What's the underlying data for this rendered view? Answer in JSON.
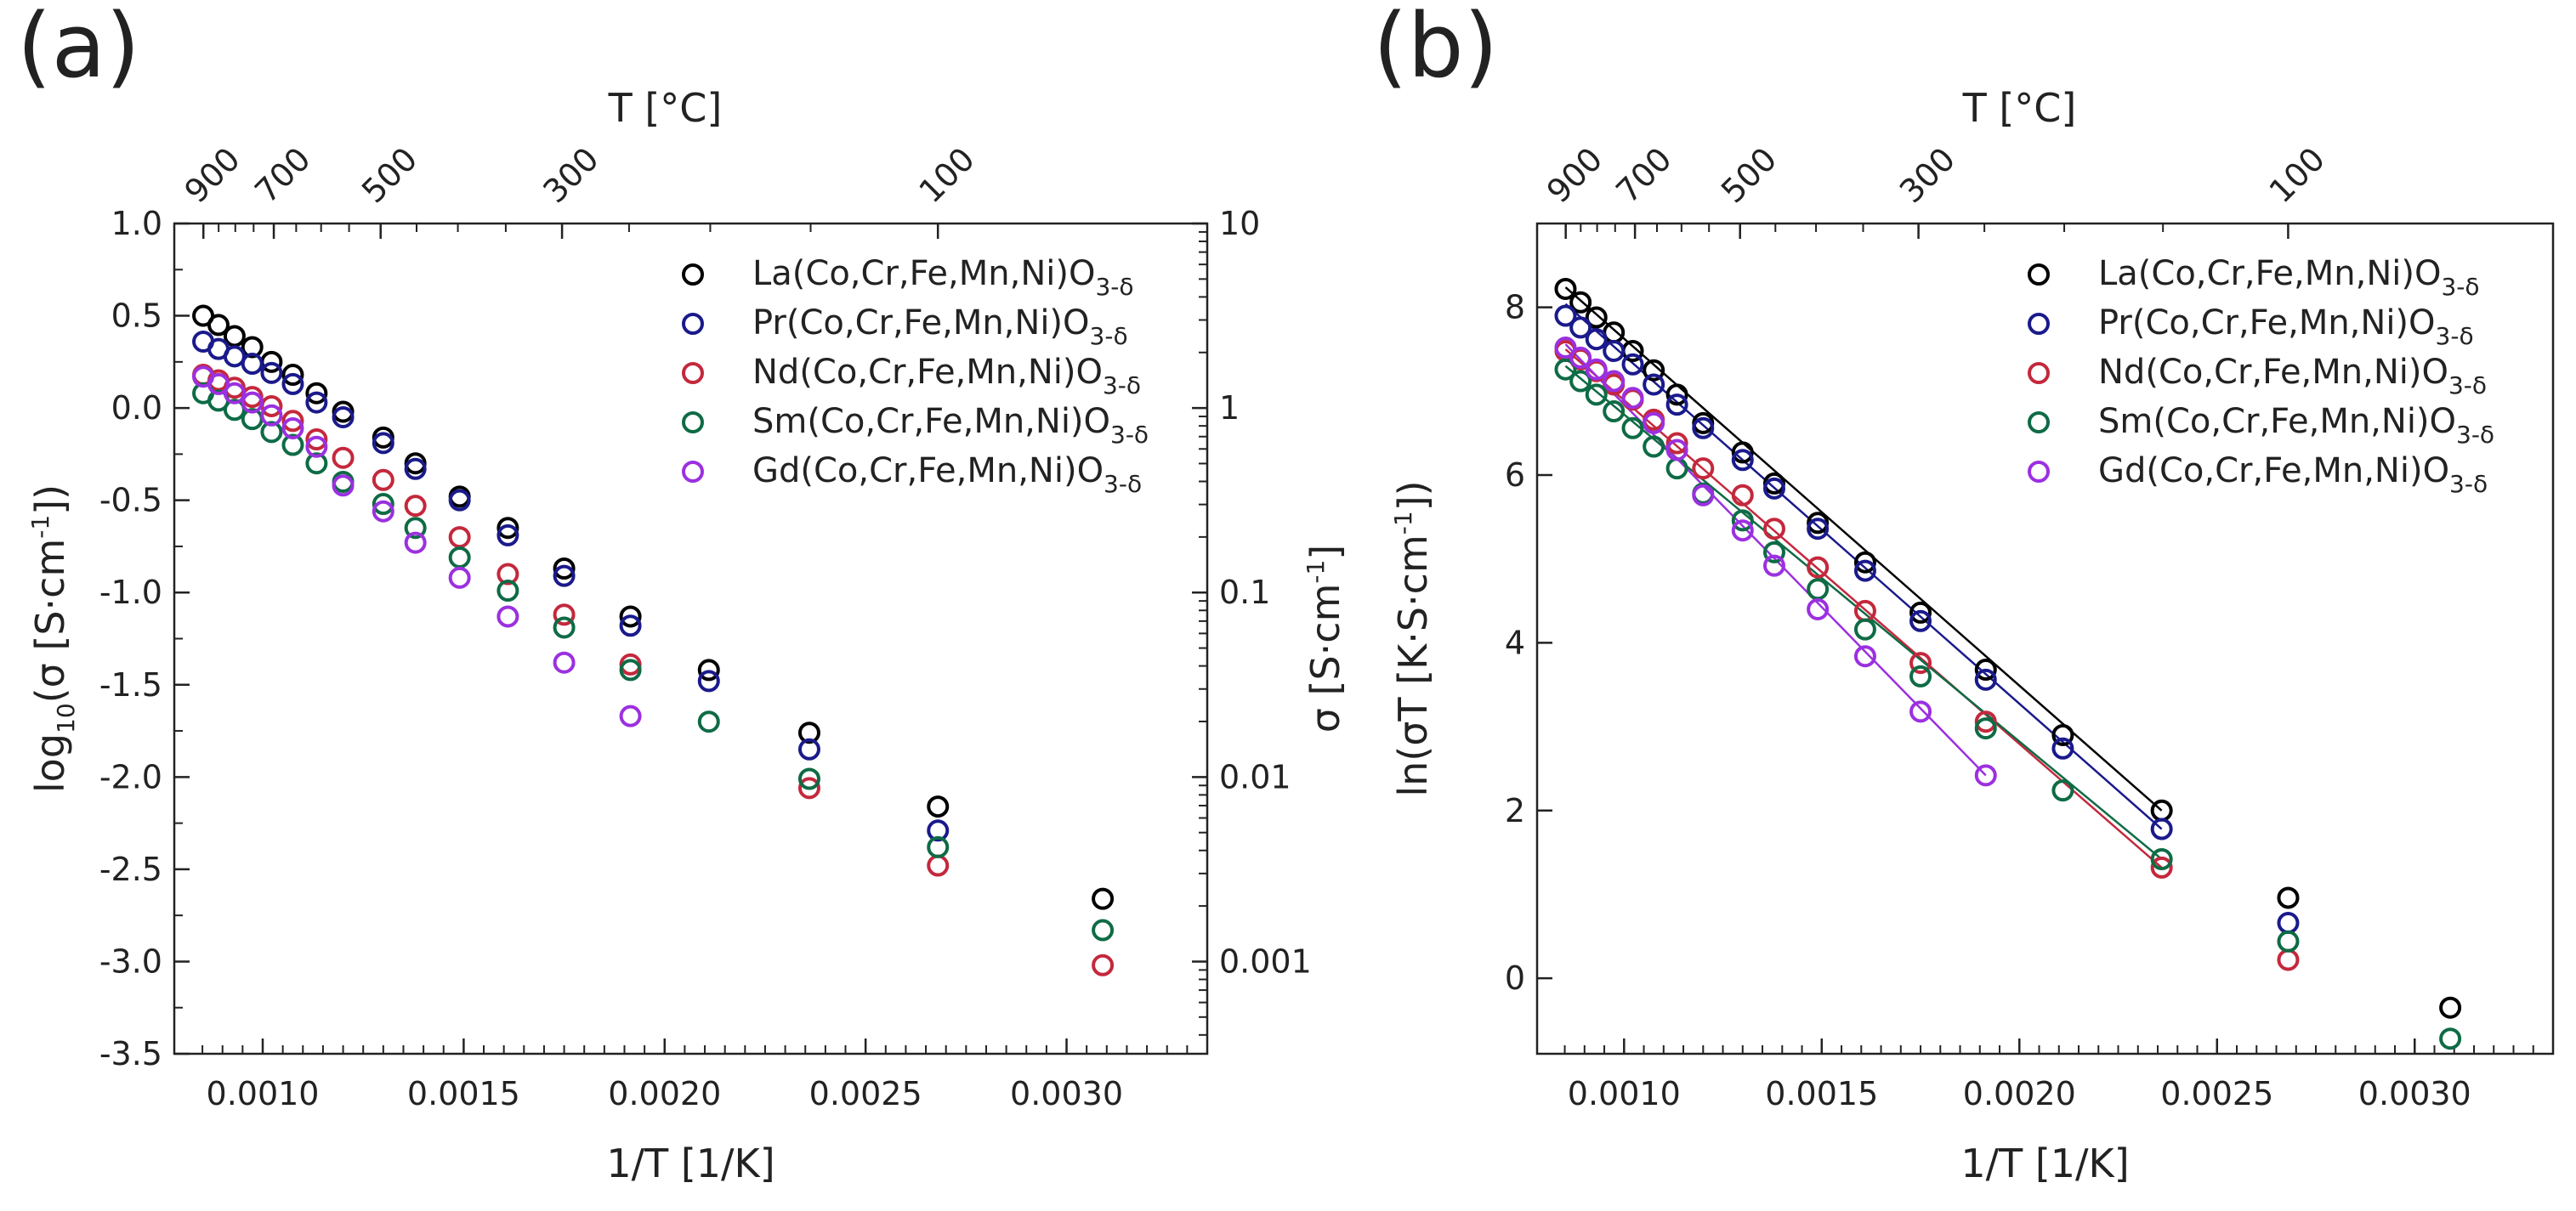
{
  "chart_data": [
    {
      "type": "scatter",
      "panel_label": "(a)",
      "xlabel": "1/T [1/K]",
      "ylabel": "log10(σ [S·cm-1])",
      "ylabel_parts": {
        "pre": "log",
        "sub": "10",
        "mid": "(σ [S·cm",
        "sup": "-1",
        "post": "])"
      },
      "top_xlabel": "T [°C]",
      "right_ylabel": "σ [S·cm-1]",
      "right_ylabel_parts": {
        "pre": "σ [S·cm",
        "sup": "-1",
        "post": "]"
      },
      "xlim": [
        0.00078,
        0.00335
      ],
      "ylim": [
        -3.5,
        1.0
      ],
      "xticks": [
        0.001,
        0.0015,
        0.002,
        0.0025,
        0.003
      ],
      "xtick_labels": [
        "0.0010",
        "0.0015",
        "0.0020",
        "0.0025",
        "0.0030"
      ],
      "yticks": [
        1.0,
        0.5,
        0.0,
        -0.5,
        -1.0,
        -1.5,
        -2.0,
        -2.5,
        -3.0,
        -3.5
      ],
      "ytick_labels": [
        "1.0",
        "0.5",
        "0.0",
        "-0.5",
        "-1.0",
        "-1.5",
        "-2.0",
        "-2.5",
        "-3.0",
        "-3.5"
      ],
      "right_yticks": [
        1,
        0,
        -1,
        -2,
        -3
      ],
      "right_ytick_labels": [
        "10",
        "1",
        "0.1",
        "0.01",
        "0.001"
      ],
      "top_tick_labels": [
        "900",
        "700",
        "500",
        "300",
        "100"
      ],
      "top_tick_values_C": [
        900,
        700,
        500,
        300,
        100
      ],
      "top_minor_ticks_C": [
        900,
        850,
        800,
        750,
        700,
        650,
        600,
        550,
        500,
        450,
        400,
        350,
        300,
        250,
        200,
        150,
        100
      ],
      "legend_position": "top-right",
      "grid": false,
      "x": [
        0.000852,
        0.00089,
        0.00093,
        0.000974,
        0.001022,
        0.001075,
        0.001134,
        0.0012,
        0.001274,
        0.001357,
        0.001453,
        0.001563,
        0.001692,
        0.001845,
        0.00203,
        0.002255,
        0.002537,
        0.0029
      ],
      "series": [
        {
          "name": "La(Co,Cr,Fe,Mn,Ni)O3-δ",
          "color": "#000000",
          "x": [
            0.000852,
            0.00089,
            0.00093,
            0.000974,
            0.001022,
            0.001075,
            0.001134,
            0.0012,
            0.0013,
            0.00138,
            0.00149,
            0.00161,
            0.00175,
            0.001915,
            0.00211,
            0.00236,
            0.00268,
            0.00309
          ],
          "values": [
            0.5,
            0.45,
            0.39,
            0.33,
            0.25,
            0.18,
            0.08,
            -0.02,
            -0.16,
            -0.3,
            -0.48,
            -0.65,
            -0.87,
            -1.13,
            -1.42,
            -1.76,
            -2.16,
            -2.66
          ]
        },
        {
          "name": "Pr(Co,Cr,Fe,Mn,Ni)O3-δ",
          "color": "#1a1a8c",
          "x": [
            0.000852,
            0.00089,
            0.00093,
            0.000974,
            0.001022,
            0.001075,
            0.001134,
            0.0012,
            0.0013,
            0.00138,
            0.00149,
            0.00161,
            0.00175,
            0.001915,
            0.00211,
            0.00236,
            0.00268
          ],
          "values": [
            0.36,
            0.32,
            0.28,
            0.24,
            0.19,
            0.13,
            0.03,
            -0.05,
            -0.19,
            -0.33,
            -0.5,
            -0.69,
            -0.91,
            -1.18,
            -1.48,
            -1.85,
            -2.29
          ]
        },
        {
          "name": "Nd(Co,Cr,Fe,Mn,Ni)O3-δ",
          "color": "#c4283c",
          "x": [
            0.000852,
            0.00089,
            0.00093,
            0.000974,
            0.001022,
            0.001075,
            0.001134,
            0.0012,
            0.0013,
            0.00138,
            0.00149,
            0.00161,
            0.00175,
            0.001915,
            0.00236,
            0.00268,
            0.00309
          ],
          "values": [
            0.18,
            0.15,
            0.11,
            0.06,
            0.01,
            -0.07,
            -0.17,
            -0.27,
            -0.39,
            -0.53,
            -0.7,
            -0.9,
            -1.12,
            -1.39,
            -2.06,
            -2.48,
            -3.02
          ]
        },
        {
          "name": "Sm(Co,Cr,Fe,Mn,Ni)O3-δ",
          "color": "#0e6b45",
          "x": [
            0.000852,
            0.00089,
            0.00093,
            0.000974,
            0.001022,
            0.001075,
            0.001134,
            0.0012,
            0.0013,
            0.00138,
            0.00149,
            0.00161,
            0.00175,
            0.001915,
            0.00211,
            0.00236,
            0.00268,
            0.00309
          ],
          "values": [
            0.08,
            0.04,
            -0.01,
            -0.06,
            -0.13,
            -0.2,
            -0.3,
            -0.4,
            -0.52,
            -0.65,
            -0.81,
            -0.99,
            -1.19,
            -1.42,
            -1.7,
            -2.01,
            -2.38,
            -2.83
          ]
        },
        {
          "name": "Gd(Co,Cr,Fe,Mn,Ni)O3-δ",
          "color": "#9b30e0",
          "x": [
            0.000852,
            0.00089,
            0.00093,
            0.000974,
            0.001022,
            0.001075,
            0.001134,
            0.0012,
            0.0013,
            0.00138,
            0.00149,
            0.00161,
            0.00175,
            0.001915
          ],
          "values": [
            0.17,
            0.13,
            0.08,
            0.03,
            -0.04,
            -0.11,
            -0.21,
            -0.42,
            -0.56,
            -0.73,
            -0.92,
            -1.13,
            -1.38,
            -1.67
          ]
        }
      ]
    },
    {
      "type": "scatter",
      "panel_label": "(b)",
      "xlabel": "1/T [1/K]",
      "ylabel": "ln(σT [K·S·cm-1])",
      "ylabel_parts": {
        "pre": "ln(σT [K·S·cm",
        "sup": "-1",
        "post": "])"
      },
      "top_xlabel": "T [°C]",
      "xlim": [
        0.00078,
        0.00335
      ],
      "ylim": [
        -0.9,
        9.0
      ],
      "xticks": [
        0.001,
        0.0015,
        0.002,
        0.0025,
        0.003
      ],
      "xtick_labels": [
        "0.0010",
        "0.0015",
        "0.0020",
        "0.0025",
        "0.0030"
      ],
      "yticks": [
        0,
        2,
        4,
        6,
        8
      ],
      "ytick_labels": [
        "0",
        "2",
        "4",
        "6",
        "8"
      ],
      "top_tick_labels": [
        "900",
        "700",
        "500",
        "300",
        "100"
      ],
      "top_tick_values_C": [
        900,
        700,
        500,
        300,
        100
      ],
      "top_minor_ticks_C": [
        900,
        850,
        800,
        750,
        700,
        650,
        600,
        550,
        500,
        450,
        400,
        350,
        300,
        250,
        200,
        150,
        100
      ],
      "legend_position": "top-right",
      "grid": false,
      "series": [
        {
          "name": "La(Co,Cr,Fe,Mn,Ni)O3-δ",
          "color": "#000000",
          "x": [
            0.000852,
            0.00089,
            0.00093,
            0.000974,
            0.001022,
            0.001075,
            0.001134,
            0.0012,
            0.0013,
            0.00138,
            0.00149,
            0.00161,
            0.00175,
            0.001915,
            0.00211,
            0.00236,
            0.00268,
            0.00309
          ],
          "values": [
            8.22,
            8.06,
            7.88,
            7.7,
            7.48,
            7.25,
            6.96,
            6.62,
            6.27,
            5.9,
            5.43,
            4.96,
            4.36,
            3.68,
            2.9,
            2.0,
            0.96,
            -0.35
          ],
          "fit": {
            "x": [
              0.000852,
              0.00236
            ],
            "y": [
              8.24,
              2.0
            ]
          }
        },
        {
          "name": "Pr(Co,Cr,Fe,Mn,Ni)O3-δ",
          "color": "#1a1a8c",
          "x": [
            0.000852,
            0.00089,
            0.00093,
            0.000974,
            0.001022,
            0.001075,
            0.001134,
            0.0012,
            0.0013,
            0.00138,
            0.00149,
            0.00161,
            0.00175,
            0.001915,
            0.00211,
            0.00236,
            0.00268
          ],
          "values": [
            7.9,
            7.76,
            7.62,
            7.48,
            7.32,
            7.08,
            6.84,
            6.56,
            6.18,
            5.84,
            5.36,
            4.86,
            4.26,
            3.56,
            2.74,
            1.78,
            0.66
          ],
          "fit": {
            "x": [
              0.000852,
              0.00236
            ],
            "y": [
              8.04,
              1.78
            ]
          }
        },
        {
          "name": "Nd(Co,Cr,Fe,Mn,Ni)O3-δ",
          "color": "#c4283c",
          "x": [
            0.000852,
            0.00089,
            0.00093,
            0.000974,
            0.001022,
            0.001075,
            0.001134,
            0.0012,
            0.0013,
            0.00138,
            0.00149,
            0.00161,
            0.00175,
            0.001915,
            0.00236,
            0.00268
          ],
          "values": [
            7.48,
            7.38,
            7.24,
            7.08,
            6.9,
            6.66,
            6.38,
            6.08,
            5.76,
            5.36,
            4.9,
            4.38,
            3.76,
            3.06,
            1.32,
            0.22
          ],
          "fit": {
            "x": [
              0.000852,
              0.00236
            ],
            "y": [
              7.5,
              1.32
            ]
          }
        },
        {
          "name": "Sm(Co,Cr,Fe,Mn,Ni)O3-δ",
          "color": "#0e6b45",
          "x": [
            0.000852,
            0.00089,
            0.00093,
            0.000974,
            0.001022,
            0.001075,
            0.001134,
            0.0012,
            0.0013,
            0.00138,
            0.00149,
            0.00161,
            0.00175,
            0.001915,
            0.00211,
            0.00236,
            0.00268,
            0.00309
          ],
          "values": [
            7.26,
            7.12,
            6.96,
            6.76,
            6.56,
            6.34,
            6.08,
            5.78,
            5.46,
            5.08,
            4.64,
            4.16,
            3.6,
            2.98,
            2.24,
            1.42,
            0.44,
            -0.72
          ],
          "fit": {
            "x": [
              0.000852,
              0.00236
            ],
            "y": [
              7.3,
              1.42
            ]
          }
        },
        {
          "name": "Gd(Co,Cr,Fe,Mn,Ni)O3-δ",
          "color": "#9b30e0",
          "x": [
            0.000852,
            0.00089,
            0.00093,
            0.000974,
            0.001022,
            0.001075,
            0.001134,
            0.0012,
            0.0013,
            0.00138,
            0.00149,
            0.00161,
            0.00175,
            0.001915
          ],
          "values": [
            7.52,
            7.4,
            7.26,
            7.12,
            6.92,
            6.62,
            6.3,
            5.76,
            5.34,
            4.92,
            4.4,
            3.84,
            3.18,
            2.42
          ],
          "fit": {
            "x": [
              0.000852,
              0.001915
            ],
            "y": [
              7.56,
              2.42
            ]
          }
        }
      ]
    }
  ]
}
